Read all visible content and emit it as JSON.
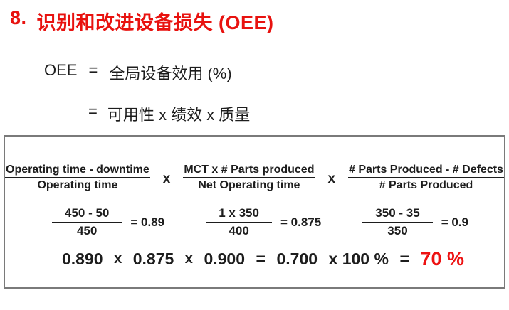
{
  "accent_red": "#e8120f",
  "title": {
    "number": "8.",
    "text": "识别和改进设备损失 (OEE)"
  },
  "oee": {
    "lhs": "OEE",
    "eq1": "=",
    "definition": "全局设备效用 (%)",
    "eq2": "=",
    "components": "可用性 x 绩效 x 质量"
  },
  "formula_box": {
    "multiply_sign": "x",
    "formulas": [
      {
        "numerator": "Operating time - downtime",
        "denominator": "Operating time"
      },
      {
        "numerator": "MCT x # Parts produced",
        "denominator": "Net Operating time"
      },
      {
        "numerator": "# Parts Produced - # Defects",
        "denominator": "# Parts Produced"
      }
    ],
    "calculations": [
      {
        "numerator": "450 - 50",
        "denominator": "450",
        "result": "= 0.89"
      },
      {
        "numerator": "1 x 350",
        "denominator": "400",
        "result": "= 0.875"
      },
      {
        "numerator": "350 - 35",
        "denominator": "350",
        "result": "= 0.9"
      }
    ],
    "result": {
      "availability": "0.890",
      "multiply1": "x",
      "performance": "0.875",
      "multiply2": "x",
      "quality": "0.900",
      "equals": "=",
      "oee_decimal": "0.700",
      "times_100": "x 100 %",
      "equals_final": "=",
      "oee_percent": "70 %"
    }
  }
}
